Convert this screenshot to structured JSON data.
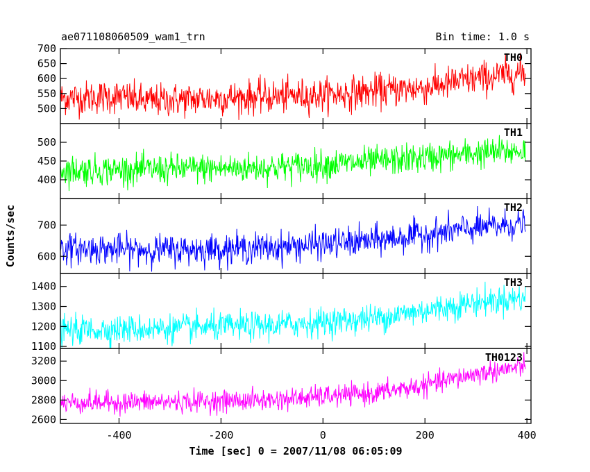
{
  "header": {
    "title": "ae071108060509_wam1_trn",
    "bin_time": "Bin time: 1.0 s"
  },
  "chart_data": {
    "type": "line",
    "xlabel": "Time [sec] 0 = 2007/11/08 06:05:09",
    "ylabel": "Counts/sec",
    "xlim": [
      -515,
      408
    ],
    "xticks": [
      -400,
      -200,
      0,
      200,
      400
    ],
    "series_note_shared_x": "1 s bins from -515 to 397",
    "panels": [
      {
        "name": "TH0",
        "color": "#ff0000",
        "ylim": [
          450,
          700
        ],
        "yticks": [
          500,
          550,
          600,
          650,
          700
        ],
        "trend": {
          "x": [
            -515,
            -400,
            -350,
            -200,
            0,
            200,
            300,
            397
          ],
          "y": [
            535,
            540,
            525,
            535,
            545,
            570,
            600,
            620
          ]
        },
        "noise_sigma": 28,
        "noise_range": 75
      },
      {
        "name": "TH1",
        "color": "#00ff00",
        "ylim": [
          350,
          550
        ],
        "yticks": [
          400,
          450,
          500
        ],
        "trend": {
          "x": [
            -515,
            -300,
            -100,
            100,
            300,
            397
          ],
          "y": [
            425,
            428,
            433,
            448,
            470,
            478
          ]
        },
        "noise_sigma": 20,
        "noise_range": 55
      },
      {
        "name": "TH2",
        "color": "#0000ff",
        "ylim": [
          545,
          785
        ],
        "yticks": [
          600,
          700
        ],
        "trend": {
          "x": [
            -515,
            -300,
            -100,
            100,
            300,
            397
          ],
          "y": [
            625,
            620,
            628,
            650,
            690,
            705
          ]
        },
        "noise_sigma": 24,
        "noise_range": 70
      },
      {
        "name": "TH3",
        "color": "#00ffff",
        "ylim": [
          1090,
          1465
        ],
        "yticks": [
          1100,
          1200,
          1300,
          1400
        ],
        "trend": {
          "x": [
            -515,
            -300,
            -100,
            100,
            300,
            397
          ],
          "y": [
            1180,
            1190,
            1205,
            1240,
            1320,
            1345
          ]
        },
        "noise_sigma": 35,
        "noise_range": 100
      },
      {
        "name": "TH0123",
        "color": "#ff00ff",
        "ylim": [
          2560,
          3330
        ],
        "yticks": [
          2600,
          2800,
          3000,
          3200
        ],
        "trend": {
          "x": [
            -515,
            -300,
            -100,
            100,
            200,
            300,
            397
          ],
          "y": [
            2775,
            2780,
            2800,
            2870,
            2950,
            3070,
            3145
          ]
        },
        "noise_sigma": 55,
        "noise_range": 150
      }
    ]
  }
}
